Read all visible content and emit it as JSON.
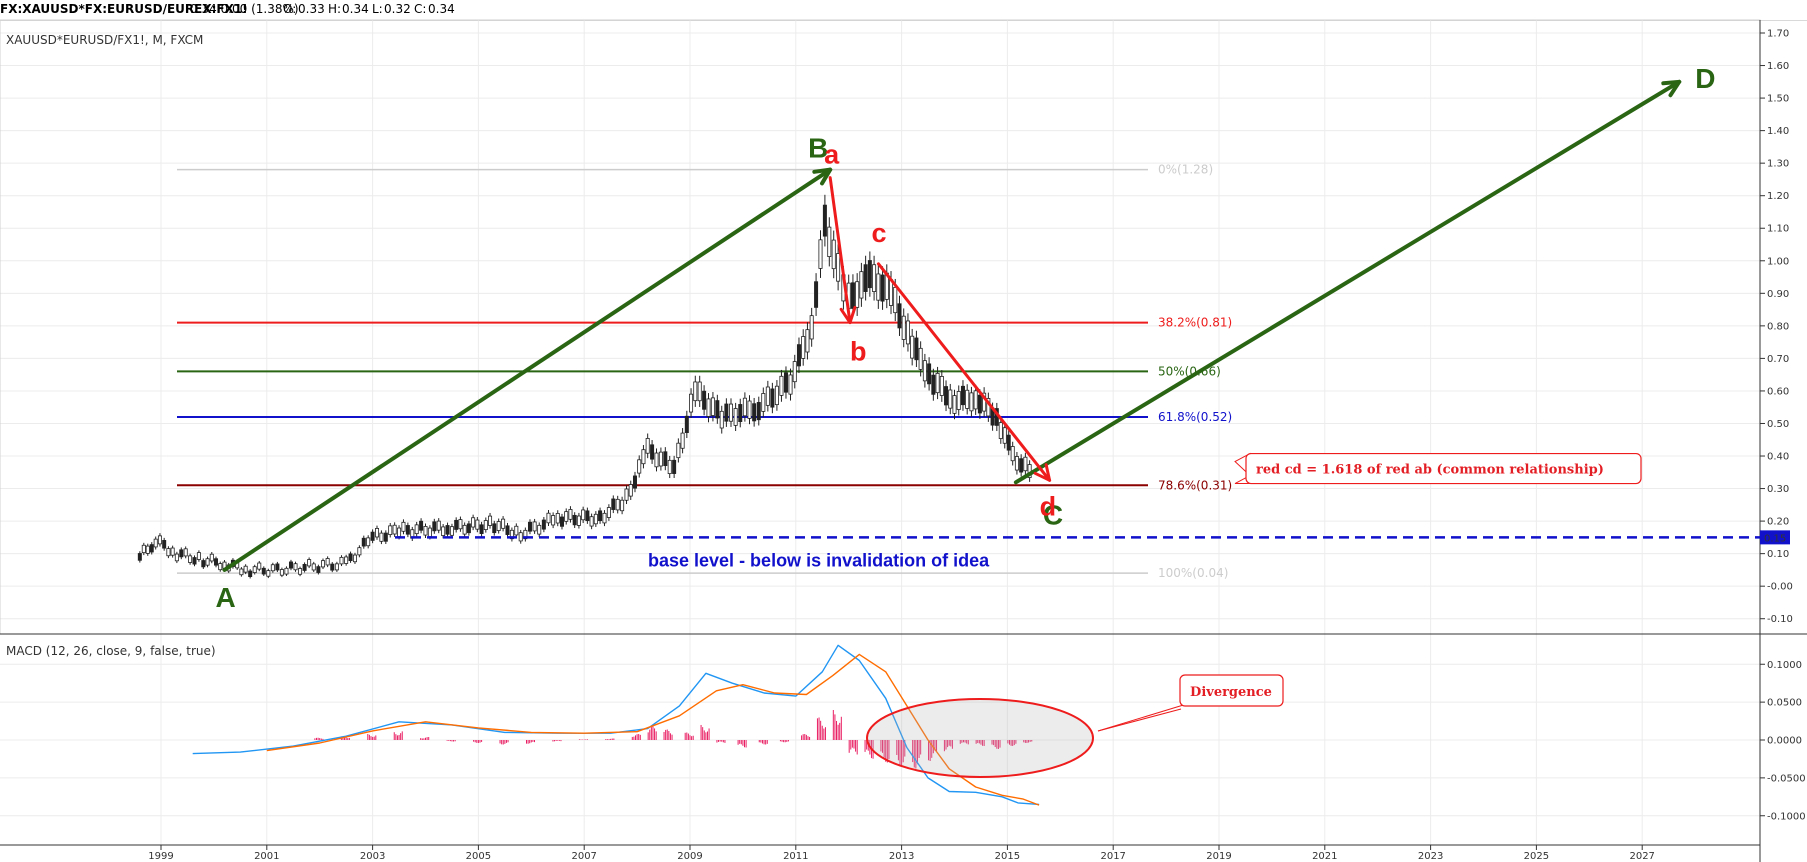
{
  "header": {
    "symbol": "FX:XAUUSD*FX:EURUSD/EUREX:FX1!",
    "change": "0.34 0.00 (1.38%)",
    "open_label": "O:",
    "open": "0.33",
    "high_label": "H:",
    "high": "0.34",
    "low_label": "L:",
    "low": "0.32",
    "close_label": "C:",
    "close": "0.34"
  },
  "main_title": "XAUUSD*EURUSD/FX1!, M, FXCM",
  "macd_title": "MACD (12, 26, close, 9, false, true)",
  "colors": {
    "green": "#2a6514",
    "red": "#ee1c1c",
    "blue": "#1111cc",
    "darkred": "#8b0000",
    "macd": "#2196f3",
    "signal": "#ff6d00",
    "hist": "#e91e63",
    "fib_grey": "#cccccc"
  },
  "chart_data": [
    {
      "type": "candlestick",
      "title": "XAUUSD*EURUSD/FX1!, M, FXCM",
      "x_ticks": [
        "1999",
        "2001",
        "2003",
        "2005",
        "2007",
        "2009",
        "2011",
        "2013",
        "2015",
        "2017",
        "2019",
        "2021",
        "2023",
        "2025",
        "2027"
      ],
      "y_ticks": [
        "1.70",
        "1.60",
        "1.50",
        "1.40",
        "1.30",
        "1.20",
        "1.10",
        "1.00",
        "0.90",
        "0.80",
        "0.70",
        "0.60",
        "0.50",
        "0.40",
        "0.30",
        "0.20",
        "0.10",
        "-0.00",
        "-0.10"
      ],
      "ylim": [
        -0.12,
        1.73
      ],
      "price_series": [
        {
          "x": 1998.6,
          "y": 0.09
        },
        {
          "x": 1998.9,
          "y": 0.14
        },
        {
          "x": 1999.3,
          "y": 0.1
        },
        {
          "x": 1999.8,
          "y": 0.08
        },
        {
          "x": 2000.2,
          "y": 0.07
        },
        {
          "x": 2000.6,
          "y": 0.05
        },
        {
          "x": 2001.2,
          "y": 0.05
        },
        {
          "x": 2001.8,
          "y": 0.06
        },
        {
          "x": 2002.5,
          "y": 0.07
        },
        {
          "x": 2003.0,
          "y": 0.15
        },
        {
          "x": 2003.5,
          "y": 0.17
        },
        {
          "x": 2004.5,
          "y": 0.18
        },
        {
          "x": 2005.3,
          "y": 0.19
        },
        {
          "x": 2005.8,
          "y": 0.16
        },
        {
          "x": 2006.5,
          "y": 0.21
        },
        {
          "x": 2007.3,
          "y": 0.21
        },
        {
          "x": 2007.8,
          "y": 0.27
        },
        {
          "x": 2008.2,
          "y": 0.42
        },
        {
          "x": 2008.7,
          "y": 0.36
        },
        {
          "x": 2009.1,
          "y": 0.6
        },
        {
          "x": 2009.6,
          "y": 0.52
        },
        {
          "x": 2010.3,
          "y": 0.55
        },
        {
          "x": 2010.9,
          "y": 0.63
        },
        {
          "x": 2011.3,
          "y": 0.8
        },
        {
          "x": 2011.55,
          "y": 1.12
        },
        {
          "x": 2011.8,
          "y": 0.97
        },
        {
          "x": 2012.0,
          "y": 0.88
        },
        {
          "x": 2012.4,
          "y": 0.95
        },
        {
          "x": 2012.8,
          "y": 0.9
        },
        {
          "x": 2013.2,
          "y": 0.74
        },
        {
          "x": 2013.6,
          "y": 0.63
        },
        {
          "x": 2014.0,
          "y": 0.57
        },
        {
          "x": 2014.4,
          "y": 0.58
        },
        {
          "x": 2014.8,
          "y": 0.52
        },
        {
          "x": 2015.1,
          "y": 0.4
        },
        {
          "x": 2015.5,
          "y": 0.34
        }
      ],
      "fib_levels": [
        {
          "label": "0%(1.28)",
          "value": 1.28,
          "color": "#cccccc"
        },
        {
          "label": "38.2%(0.81)",
          "value": 0.81,
          "color": "#ee1c1c"
        },
        {
          "label": "50%(0.66)",
          "value": 0.66,
          "color": "#2a6514"
        },
        {
          "label": "61.8%(0.52)",
          "value": 0.52,
          "color": "#1111cc"
        },
        {
          "label": "78.6%(0.31)",
          "value": 0.31,
          "color": "#8b0000"
        },
        {
          "label": "100%(0.04)",
          "value": 0.04,
          "color": "#cccccc"
        }
      ],
      "base_level": {
        "value": 0.15,
        "label": "0.15",
        "text": "base level - below is invalidation of idea"
      },
      "green_waves": [
        {
          "label": "A",
          "x": 2000.2,
          "y": 0.05
        },
        {
          "label": "B",
          "x": 2011.65,
          "y": 1.28
        },
        {
          "label": "C",
          "x": 2016.2,
          "y": 0.31
        },
        {
          "label": "D",
          "x": 2027.7,
          "y": 1.55
        }
      ],
      "red_waves": [
        {
          "label": "a",
          "x": 2011.65,
          "y": 1.28
        },
        {
          "label": "b",
          "x": 2012.1,
          "y": 0.81
        },
        {
          "label": "c",
          "x": 2012.6,
          "y": 1.0
        },
        {
          "label": "d",
          "x": 2016.1,
          "y": 0.31
        }
      ],
      "note": "red cd = 1.618 of red ab (common relationship)"
    },
    {
      "type": "line",
      "title": "MACD (12, 26, close, 9, false, true)",
      "y_ticks": [
        "0.1000",
        "0.0500",
        "0.0000",
        "-0.0500",
        "-0.1000"
      ],
      "ylim": [
        -0.125,
        0.13
      ],
      "series": [
        {
          "values": [
            [
              1999.6,
              -0.018
            ],
            [
              2000.5,
              -0.016
            ],
            [
              2001.5,
              -0.008
            ],
            [
              2002.5,
              0.005
            ],
            [
              2003.5,
              0.024
            ],
            [
              2004.5,
              0.02
            ],
            [
              2005.5,
              0.01
            ],
            [
              2006.5,
              0.009
            ],
            [
              2007.5,
              0.009
            ],
            [
              2008.2,
              0.015
            ],
            [
              2008.8,
              0.045
            ],
            [
              2009.3,
              0.088
            ],
            [
              2009.8,
              0.075
            ],
            [
              2010.4,
              0.062
            ],
            [
              2011.0,
              0.058
            ],
            [
              2011.5,
              0.09
            ],
            [
              2011.8,
              0.125
            ],
            [
              2012.2,
              0.105
            ],
            [
              2012.7,
              0.055
            ],
            [
              2013.1,
              -0.01
            ],
            [
              2013.5,
              -0.05
            ],
            [
              2013.9,
              -0.068
            ],
            [
              2014.4,
              -0.069
            ],
            [
              2014.9,
              -0.075
            ],
            [
              2015.2,
              -0.083
            ],
            [
              2015.6,
              -0.085
            ]
          ]
        },
        {
          "values": [
            [
              2001.0,
              -0.014
            ],
            [
              2002.0,
              -0.004
            ],
            [
              2003.0,
              0.012
            ],
            [
              2004.0,
              0.024
            ],
            [
              2005.0,
              0.016
            ],
            [
              2006.0,
              0.01
            ],
            [
              2007.0,
              0.009
            ],
            [
              2008.0,
              0.011
            ],
            [
              2008.8,
              0.032
            ],
            [
              2009.5,
              0.065
            ],
            [
              2010.0,
              0.073
            ],
            [
              2010.6,
              0.062
            ],
            [
              2011.2,
              0.06
            ],
            [
              2011.7,
              0.085
            ],
            [
              2012.2,
              0.113
            ],
            [
              2012.7,
              0.09
            ],
            [
              2013.1,
              0.045
            ],
            [
              2013.5,
              0.0
            ],
            [
              2013.9,
              -0.038
            ],
            [
              2014.4,
              -0.062
            ],
            [
              2014.9,
              -0.073
            ],
            [
              2015.3,
              -0.078
            ],
            [
              2015.6,
              -0.086
            ]
          ]
        }
      ],
      "histogram": {
        "x": [
          2002.0,
          2002.5,
          2003.0,
          2003.5,
          2004.0,
          2004.5,
          2005.0,
          2005.5,
          2006.0,
          2006.5,
          2007.0,
          2007.5,
          2008.0,
          2008.3,
          2008.6,
          2009.0,
          2009.3,
          2009.6,
          2010.0,
          2010.4,
          2010.8,
          2011.2,
          2011.5,
          2011.8,
          2012.1,
          2012.4,
          2012.7,
          2013.0,
          2013.3,
          2013.6,
          2013.9,
          2014.2,
          2014.5,
          2014.8,
          2015.1,
          2015.4
        ],
        "values": [
          0.003,
          0.005,
          0.008,
          0.012,
          0.004,
          -0.002,
          -0.004,
          -0.006,
          -0.005,
          -0.002,
          0.001,
          0.002,
          0.008,
          0.018,
          0.014,
          0.01,
          0.02,
          -0.004,
          -0.01,
          -0.006,
          -0.003,
          0.008,
          0.03,
          0.04,
          -0.02,
          -0.025,
          -0.03,
          -0.035,
          -0.038,
          -0.028,
          -0.015,
          -0.006,
          -0.008,
          -0.012,
          -0.008,
          -0.004
        ]
      },
      "annotation": "Divergence"
    }
  ]
}
